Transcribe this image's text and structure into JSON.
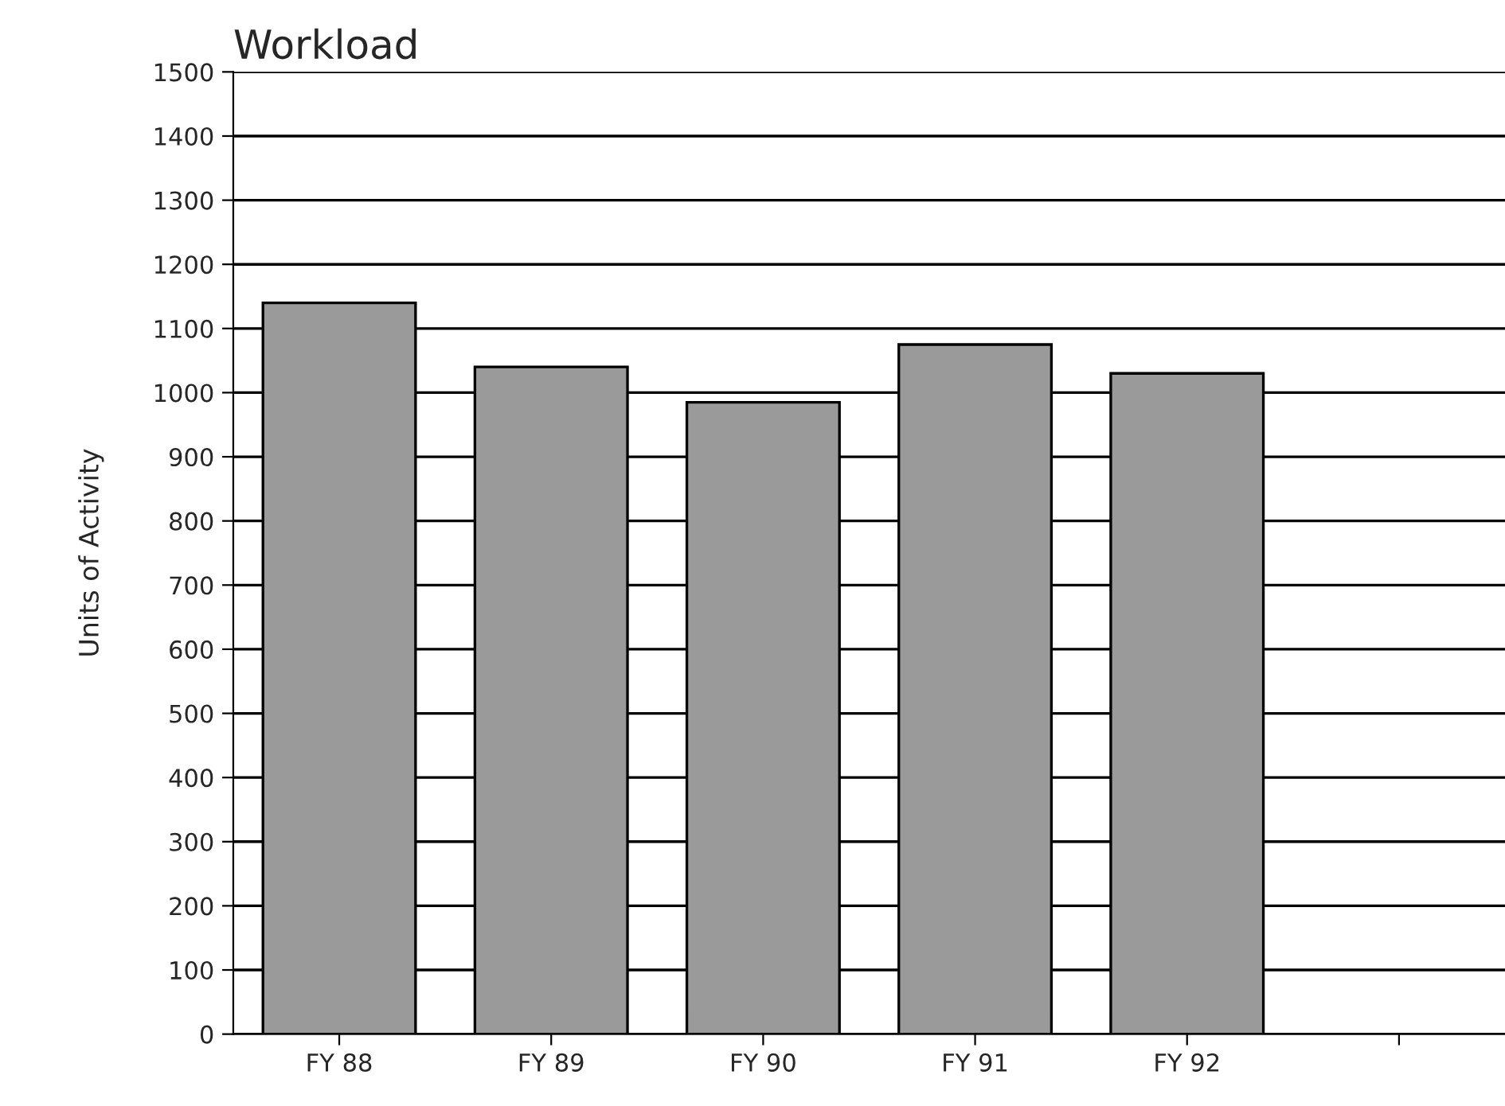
{
  "chart_data": {
    "type": "bar",
    "title": "Workload",
    "ylabel": "Units of Activity",
    "categories": [
      "FY 88",
      "FY 89",
      "FY 90",
      "FY 91",
      "FY 92",
      null
    ],
    "values": [
      1140,
      1040,
      985,
      1075,
      1030,
      null
    ],
    "color": "#9a9a9a",
    "ylim": [
      0,
      1500
    ],
    "yticks": [
      0,
      100,
      200,
      300,
      400,
      500,
      600,
      700,
      800,
      900,
      1000,
      1100,
      1200,
      1300,
      1400,
      1500
    ],
    "grid": "y",
    "legend": false
  }
}
